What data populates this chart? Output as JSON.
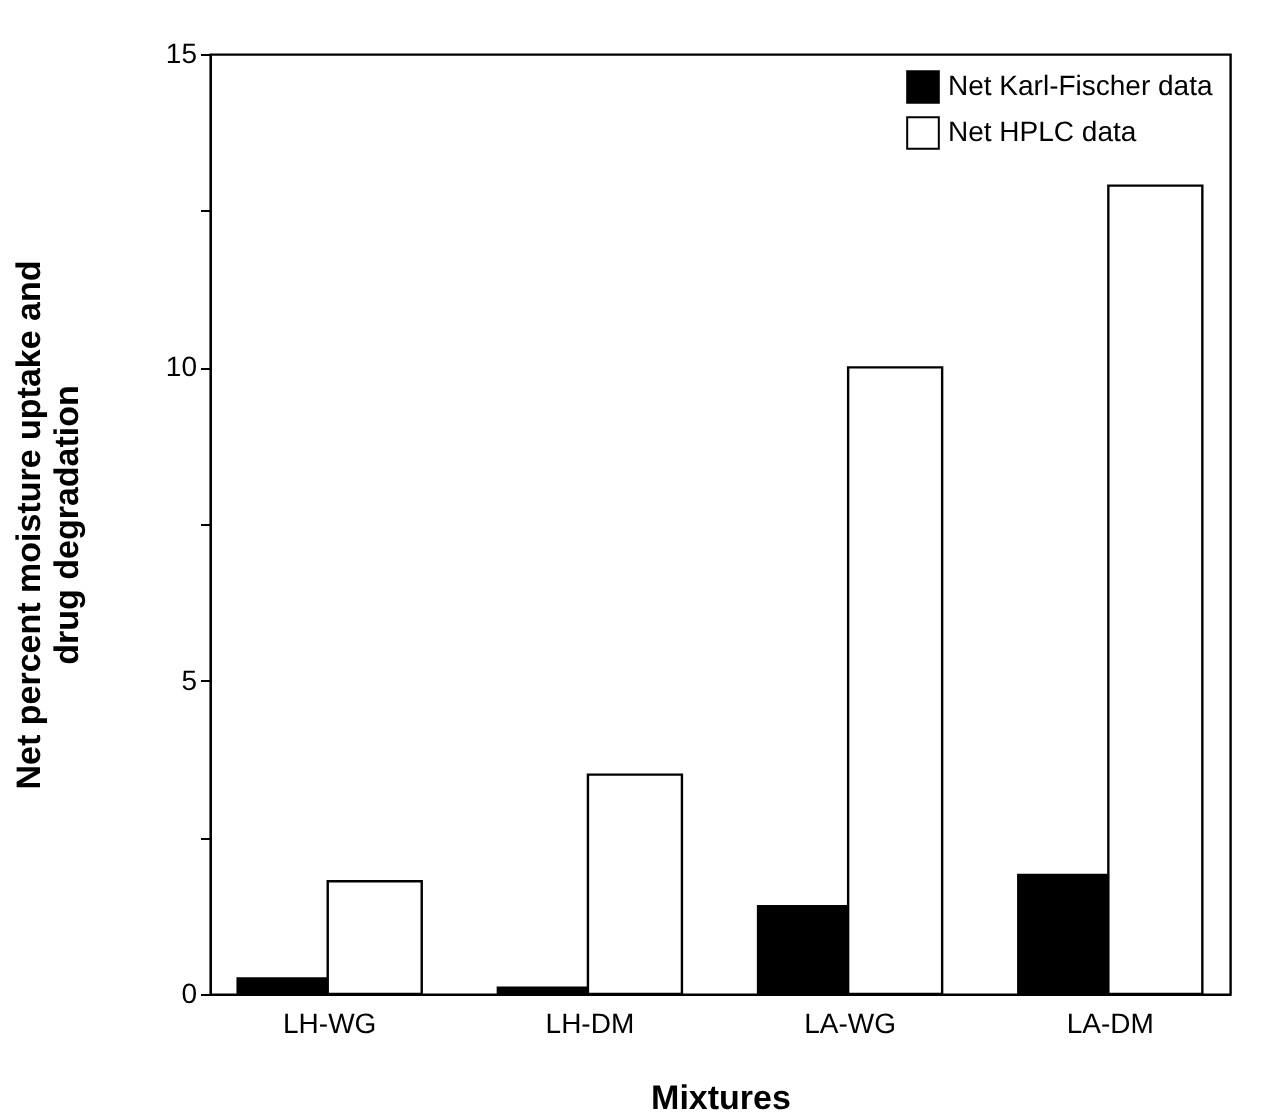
{
  "chart_data": {
    "type": "bar",
    "categories": [
      "LH-WG",
      "LH-DM",
      "LA-WG",
      "LA-DM"
    ],
    "series": [
      {
        "name": "Net Karl-Fischer data",
        "color": "#000000",
        "values": [
          0.25,
          0.1,
          1.4,
          1.9
        ]
      },
      {
        "name": "Net HPLC data",
        "color": "#ffffff",
        "values": [
          1.8,
          3.5,
          10.0,
          12.9
        ]
      }
    ],
    "xlabel": "Mixtures",
    "ylabel": "Net percent moisture uptake and drug degradation",
    "ylim": [
      0,
      15
    ],
    "yticks": [
      0,
      {
        "value": 2.5,
        "label": null
      },
      5,
      {
        "value": 7.5,
        "label": null
      },
      10,
      {
        "value": 12.5,
        "label": null
      },
      15
    ],
    "grid": false,
    "legend": "top right"
  }
}
